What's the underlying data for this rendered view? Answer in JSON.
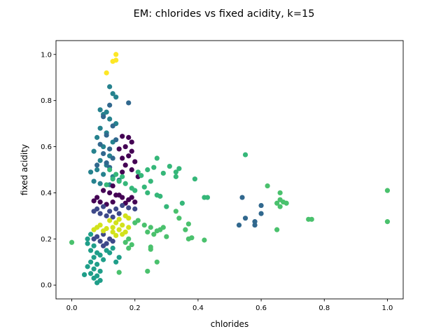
{
  "chart_data": {
    "type": "scatter",
    "title": "EM: chlorides vs fixed acidity, k=15",
    "xlabel": "chlorides",
    "ylabel": "fixed acidity",
    "xlim": [
      -0.05,
      1.05
    ],
    "ylim": [
      -0.06,
      1.06
    ],
    "xticks": [
      0.0,
      0.2,
      0.4,
      0.6,
      0.8,
      1.0
    ],
    "xtick_labels": [
      "0.0",
      "0.2",
      "0.4",
      "0.6",
      "0.8",
      "1.0"
    ],
    "yticks": [
      0.0,
      0.2,
      0.4,
      0.6,
      0.8,
      1.0
    ],
    "ytick_labels": [
      "0.0",
      "0.2",
      "0.4",
      "0.6",
      "0.8",
      "1.0"
    ],
    "grid": false,
    "colormap": "viridis",
    "series": [
      {
        "color": "#fde725",
        "points": [
          [
            0.14,
            1.0
          ],
          [
            0.13,
            0.97
          ],
          [
            0.14,
            0.975
          ],
          [
            0.11,
            0.92
          ]
        ]
      },
      {
        "color": "#26828e",
        "points": [
          [
            0.12,
            0.86
          ],
          [
            0.13,
            0.83
          ],
          [
            0.14,
            0.815
          ],
          [
            0.09,
            0.76
          ],
          [
            0.11,
            0.75
          ],
          [
            0.1,
            0.74
          ],
          [
            0.12,
            0.72
          ],
          [
            0.14,
            0.7
          ],
          [
            0.09,
            0.68
          ],
          [
            0.11,
            0.66
          ],
          [
            0.08,
            0.64
          ],
          [
            0.13,
            0.62
          ],
          [
            0.1,
            0.6
          ],
          [
            0.07,
            0.58
          ],
          [
            0.12,
            0.56
          ],
          [
            0.09,
            0.54
          ],
          [
            0.11,
            0.52
          ],
          [
            0.08,
            0.5
          ],
          [
            0.06,
            0.49
          ],
          [
            0.1,
            0.48
          ],
          [
            0.13,
            0.47
          ],
          [
            0.15,
            0.455
          ],
          [
            0.07,
            0.45
          ],
          [
            0.09,
            0.44
          ],
          [
            0.12,
            0.435
          ]
        ]
      },
      {
        "color": "#31688e",
        "points": [
          [
            0.18,
            0.79
          ],
          [
            0.12,
            0.78
          ],
          [
            0.1,
            0.73
          ],
          [
            0.13,
            0.69
          ],
          [
            0.11,
            0.65
          ],
          [
            0.14,
            0.63
          ],
          [
            0.09,
            0.61
          ],
          [
            0.12,
            0.59
          ],
          [
            0.1,
            0.57
          ],
          [
            0.13,
            0.55
          ],
          [
            0.11,
            0.53
          ],
          [
            0.08,
            0.52
          ],
          [
            0.12,
            0.51
          ],
          [
            0.54,
            0.38
          ],
          [
            0.55,
            0.29
          ],
          [
            0.53,
            0.26
          ],
          [
            0.58,
            0.275
          ],
          [
            0.58,
            0.26
          ],
          [
            0.6,
            0.345
          ],
          [
            0.6,
            0.31
          ]
        ]
      },
      {
        "color": "#440154",
        "points": [
          [
            0.16,
            0.645
          ],
          [
            0.18,
            0.64
          ],
          [
            0.19,
            0.62
          ],
          [
            0.17,
            0.6
          ],
          [
            0.15,
            0.59
          ],
          [
            0.19,
            0.58
          ],
          [
            0.18,
            0.56
          ],
          [
            0.16,
            0.55
          ],
          [
            0.2,
            0.535
          ],
          [
            0.17,
            0.52
          ],
          [
            0.19,
            0.5
          ],
          [
            0.16,
            0.49
          ],
          [
            0.21,
            0.47
          ],
          [
            0.13,
            0.43
          ],
          [
            0.1,
            0.41
          ],
          [
            0.12,
            0.4
          ],
          [
            0.14,
            0.39
          ],
          [
            0.16,
            0.38
          ],
          [
            0.18,
            0.37
          ],
          [
            0.09,
            0.36
          ],
          [
            0.11,
            0.35
          ],
          [
            0.13,
            0.36
          ],
          [
            0.15,
            0.39
          ],
          [
            0.17,
            0.355
          ],
          [
            0.19,
            0.38
          ],
          [
            0.08,
            0.38
          ],
          [
            0.2,
            0.36
          ],
          [
            0.07,
            0.365
          ]
        ]
      },
      {
        "color": "#35b779",
        "points": [
          [
            0.12,
            0.5
          ],
          [
            0.14,
            0.48
          ],
          [
            0.16,
            0.47
          ],
          [
            0.13,
            0.46
          ],
          [
            0.15,
            0.45
          ],
          [
            0.17,
            0.44
          ],
          [
            0.11,
            0.435
          ],
          [
            0.19,
            0.42
          ],
          [
            0.27,
            0.55
          ],
          [
            0.26,
            0.51
          ],
          [
            0.24,
            0.5
          ],
          [
            0.21,
            0.49
          ],
          [
            0.22,
            0.475
          ],
          [
            0.31,
            0.515
          ],
          [
            0.34,
            0.505
          ],
          [
            0.33,
            0.49
          ],
          [
            0.29,
            0.485
          ],
          [
            0.39,
            0.46
          ],
          [
            0.33,
            0.47
          ],
          [
            0.25,
            0.45
          ],
          [
            0.23,
            0.425
          ],
          [
            0.2,
            0.41
          ],
          [
            0.24,
            0.4
          ],
          [
            0.27,
            0.39
          ],
          [
            0.28,
            0.385
          ],
          [
            0.42,
            0.38
          ],
          [
            0.43,
            0.38
          ],
          [
            0.35,
            0.355
          ],
          [
            0.3,
            0.34
          ],
          [
            0.55,
            0.565
          ]
        ]
      },
      {
        "color": "#3e4989",
        "points": [
          [
            0.1,
            0.34
          ],
          [
            0.08,
            0.33
          ],
          [
            0.12,
            0.32
          ],
          [
            0.14,
            0.33
          ],
          [
            0.09,
            0.31
          ],
          [
            0.11,
            0.3
          ],
          [
            0.13,
            0.295
          ],
          [
            0.07,
            0.32
          ],
          [
            0.15,
            0.31
          ],
          [
            0.16,
            0.345
          ],
          [
            0.18,
            0.335
          ],
          [
            0.2,
            0.33
          ],
          [
            0.1,
            0.22
          ],
          [
            0.08,
            0.21
          ],
          [
            0.12,
            0.2
          ],
          [
            0.09,
            0.19
          ],
          [
            0.11,
            0.18
          ],
          [
            0.13,
            0.19
          ],
          [
            0.07,
            0.2
          ],
          [
            0.1,
            0.17
          ]
        ]
      },
      {
        "color": "#d2e21b",
        "points": [
          [
            0.12,
            0.28
          ],
          [
            0.14,
            0.27
          ],
          [
            0.16,
            0.26
          ],
          [
            0.13,
            0.25
          ],
          [
            0.15,
            0.24
          ],
          [
            0.17,
            0.23
          ],
          [
            0.11,
            0.245
          ],
          [
            0.18,
            0.25
          ],
          [
            0.16,
            0.22
          ],
          [
            0.14,
            0.215
          ],
          [
            0.13,
            0.23
          ],
          [
            0.09,
            0.26
          ],
          [
            0.08,
            0.25
          ],
          [
            0.07,
            0.24
          ],
          [
            0.1,
            0.235
          ],
          [
            0.18,
            0.29
          ],
          [
            0.17,
            0.3
          ],
          [
            0.15,
            0.285
          ]
        ]
      },
      {
        "color": "#1f9e89",
        "points": [
          [
            0.07,
            0.17
          ],
          [
            0.06,
            0.15
          ],
          [
            0.08,
            0.14
          ],
          [
            0.09,
            0.13
          ],
          [
            0.07,
            0.12
          ],
          [
            0.1,
            0.11
          ],
          [
            0.06,
            0.1
          ],
          [
            0.08,
            0.09
          ],
          [
            0.05,
            0.08
          ],
          [
            0.07,
            0.07
          ],
          [
            0.09,
            0.06
          ],
          [
            0.06,
            0.05
          ],
          [
            0.08,
            0.04
          ],
          [
            0.04,
            0.045
          ],
          [
            0.07,
            0.03
          ],
          [
            0.08,
            0.01
          ],
          [
            0.09,
            0.02
          ],
          [
            0.11,
            0.15
          ],
          [
            0.13,
            0.16
          ],
          [
            0.12,
            0.14
          ],
          [
            0.14,
            0.1
          ],
          [
            0.15,
            0.12
          ],
          [
            0.05,
            0.18
          ],
          [
            0.06,
            0.22
          ],
          [
            0.05,
            0.2
          ]
        ]
      },
      {
        "color": "#4ac16d",
        "points": [
          [
            0.18,
            0.2
          ],
          [
            0.17,
            0.185
          ],
          [
            0.19,
            0.175
          ],
          [
            0.18,
            0.16
          ],
          [
            0.2,
            0.27
          ],
          [
            0.21,
            0.28
          ],
          [
            0.23,
            0.26
          ],
          [
            0.25,
            0.25
          ],
          [
            0.26,
            0.22
          ],
          [
            0.27,
            0.235
          ],
          [
            0.24,
            0.23
          ],
          [
            0.28,
            0.24
          ],
          [
            0.29,
            0.25
          ],
          [
            0.3,
            0.21
          ],
          [
            0.33,
            0.32
          ],
          [
            0.34,
            0.29
          ],
          [
            0.37,
            0.265
          ],
          [
            0.36,
            0.24
          ],
          [
            0.37,
            0.2
          ],
          [
            0.38,
            0.205
          ],
          [
            0.42,
            0.195
          ],
          [
            0.25,
            0.165
          ],
          [
            0.25,
            0.155
          ],
          [
            0.27,
            0.1
          ],
          [
            0.24,
            0.06
          ],
          [
            0.15,
            0.055
          ],
          [
            0.0,
            0.185
          ],
          [
            0.62,
            0.43
          ],
          [
            0.66,
            0.4
          ],
          [
            0.65,
            0.355
          ],
          [
            0.66,
            0.37
          ],
          [
            0.67,
            0.36
          ],
          [
            0.68,
            0.355
          ],
          [
            0.66,
            0.34
          ],
          [
            0.65,
            0.24
          ],
          [
            0.75,
            0.285
          ],
          [
            0.76,
            0.285
          ],
          [
            1.0,
            0.41
          ],
          [
            1.0,
            0.275
          ]
        ]
      }
    ]
  }
}
